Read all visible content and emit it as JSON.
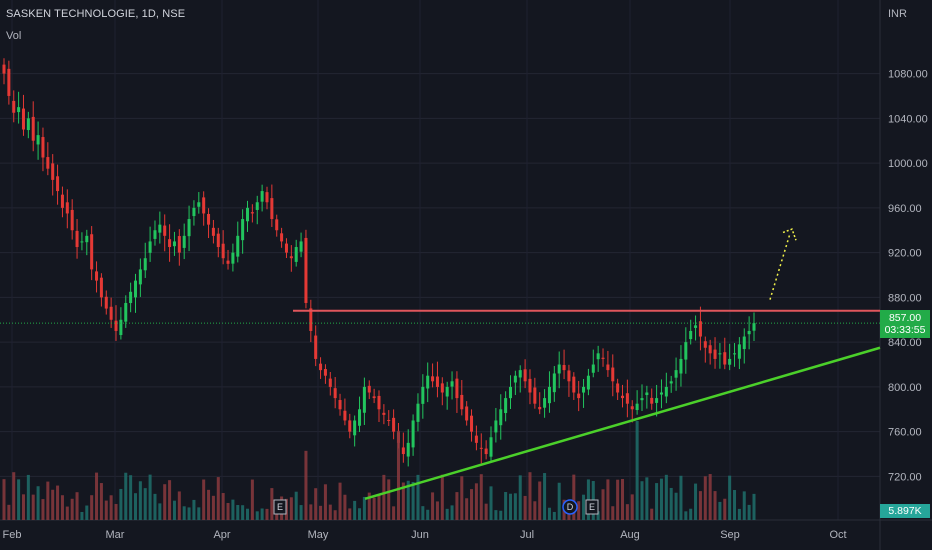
{
  "header": {
    "title": "SASKEN TECHNOLOGIE, 1D, NSE",
    "volume_label": "Vol",
    "currency": "INR"
  },
  "price_tag": {
    "price": "857.00",
    "countdown": "03:33:55"
  },
  "volume_tag": "5.897K",
  "events": [
    {
      "label": "E",
      "month": "May",
      "approx_day": "-3"
    },
    {
      "label": "D",
      "month": "Jul",
      "approx_day": "15"
    },
    {
      "label": "E",
      "month": "Aug",
      "approx_day": "-8"
    }
  ],
  "colors": {
    "background": "#141720",
    "up": "#22c55e",
    "down": "#e53935",
    "resistance": "#e0565c",
    "trendline": "#4bd02a",
    "projection": "#f2f24a",
    "last_price_line": "#22ab48",
    "vol_up": "#1f6f6b",
    "vol_down": "#8a3a3e"
  },
  "chart_data": {
    "type": "candlestick",
    "symbol": "SASKEN TECHNOLOGIE",
    "interval": "1D",
    "exchange": "NSE",
    "currency": "INR",
    "x_tick_labels": [
      "Feb",
      "Mar",
      "Apr",
      "May",
      "Jun",
      "Jul",
      "Aug",
      "Sep",
      "Oct"
    ],
    "y_tick_labels": [
      "720.00",
      "760.00",
      "800.00",
      "840.00",
      "880.00",
      "920.00",
      "960.00",
      "1000.00",
      "1040.00",
      "1080.00"
    ],
    "ylim": [
      690,
      1110
    ],
    "last_price": 857.0,
    "last_volume": "5.897K",
    "close_series": [
      1080,
      1060,
      1045,
      1050,
      1030,
      1040,
      1020,
      1025,
      1005,
      995,
      985,
      975,
      960,
      955,
      940,
      925,
      930,
      935,
      905,
      895,
      880,
      870,
      860,
      850,
      860,
      875,
      885,
      895,
      905,
      915,
      930,
      940,
      945,
      935,
      925,
      930,
      920,
      935,
      950,
      960,
      965,
      955,
      945,
      935,
      925,
      915,
      910,
      920,
      935,
      950,
      960,
      955,
      965,
      975,
      965,
      950,
      940,
      930,
      920,
      915,
      925,
      930,
      875,
      850,
      825,
      815,
      810,
      800,
      790,
      780,
      770,
      760,
      770,
      780,
      800,
      795,
      790,
      780,
      775,
      770,
      760,
      750,
      740,
      750,
      770,
      785,
      800,
      810,
      805,
      800,
      795,
      800,
      805,
      790,
      780,
      770,
      760,
      750,
      745,
      740,
      755,
      770,
      780,
      790,
      800,
      810,
      815,
      805,
      795,
      785,
      780,
      790,
      800,
      812,
      820,
      815,
      805,
      795,
      790,
      800,
      810,
      820,
      830,
      825,
      815,
      805,
      795,
      790,
      785,
      780,
      785,
      790,
      795,
      785,
      790,
      795,
      800,
      805,
      815,
      825,
      840,
      850,
      855,
      845,
      835,
      830,
      825,
      830,
      820,
      825,
      830,
      838,
      845,
      850,
      857
    ],
    "resistance_level": 868,
    "trendline": {
      "from": {
        "date": "May-15",
        "price": 700
      },
      "to": {
        "date": "Sep-30",
        "price": 840
      }
    },
    "projection": {
      "from": 890,
      "to": 940
    },
    "annotations": [
      "E",
      "D",
      "E"
    ]
  }
}
